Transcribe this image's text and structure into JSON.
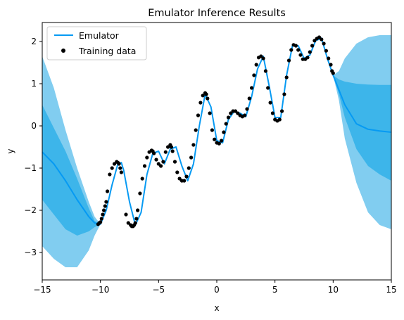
{
  "chart_data": {
    "type": "line",
    "title": "Emulator Inference Results",
    "xlabel": "x",
    "ylabel": "y",
    "xlim": [
      -15,
      15
    ],
    "ylim": [
      -3.65,
      2.45
    ],
    "xticks": [
      -15,
      -10,
      -5,
      0,
      5,
      10,
      15
    ],
    "yticks": [
      -3,
      -2,
      -1,
      0,
      1,
      2
    ],
    "grid": false,
    "legend_position": "top-left",
    "colors": {
      "line": "#069AF3",
      "band_inner": "#3DB5EA",
      "band_outer": "#81CDF0",
      "points": "#000000"
    },
    "series": [
      {
        "name": "Emulator",
        "kind": "line",
        "x": [
          -15,
          -14,
          -13,
          -12,
          -11,
          -10.5,
          -10,
          -9.5,
          -9,
          -8.5,
          -8.2,
          -8,
          -7.5,
          -7,
          -6.5,
          -6,
          -5.5,
          -5,
          -4.5,
          -4,
          -3.5,
          -3,
          -2.5,
          -2,
          -1.5,
          -1,
          -0.5,
          0,
          0.5,
          1,
          1.5,
          2,
          2.5,
          3,
          3.5,
          4,
          4.5,
          5,
          5.5,
          6,
          6.5,
          7,
          7.5,
          8,
          8.5,
          9,
          9.5,
          10,
          10.5,
          11,
          12,
          13,
          14,
          15
        ],
        "y": [
          -0.62,
          -0.9,
          -1.3,
          -1.75,
          -2.15,
          -2.3,
          -2.33,
          -2.0,
          -1.4,
          -0.9,
          -0.87,
          -1.05,
          -1.8,
          -2.35,
          -2.05,
          -1.15,
          -0.65,
          -0.6,
          -0.9,
          -0.55,
          -0.5,
          -0.95,
          -1.3,
          -0.9,
          0.0,
          0.75,
          0.45,
          -0.35,
          -0.4,
          0.15,
          0.35,
          0.3,
          0.22,
          0.7,
          1.35,
          1.65,
          0.95,
          0.2,
          0.2,
          1.2,
          1.9,
          1.9,
          1.6,
          1.68,
          2.02,
          2.08,
          1.6,
          1.2,
          0.85,
          0.5,
          0.05,
          -0.08,
          -0.12,
          -0.15
        ]
      },
      {
        "name": "Training data",
        "kind": "scatter",
        "x": [
          -10.2,
          -10.1,
          -10,
          -9.9,
          -9.8,
          -9.7,
          -9.6,
          -9.5,
          -9.4,
          -9.2,
          -9,
          -8.8,
          -8.6,
          -8.5,
          -8.4,
          -8.3,
          -8.2,
          -7.8,
          -7.6,
          -7.4,
          -7.3,
          -7.2,
          -7.1,
          -7,
          -6.9,
          -6.8,
          -6.6,
          -6.4,
          -6.2,
          -6,
          -5.8,
          -5.6,
          -5.5,
          -5.4,
          -5.2,
          -5,
          -4.8,
          -4.6,
          -4.4,
          -4.2,
          -4,
          -3.9,
          -3.8,
          -3.6,
          -3.4,
          -3.2,
          -3,
          -2.8,
          -2.6,
          -2.4,
          -2.2,
          -2,
          -1.8,
          -1.6,
          -1.4,
          -1.2,
          -1,
          -0.9,
          -0.8,
          -0.6,
          -0.4,
          -0.2,
          0,
          0.2,
          0.4,
          0.6,
          0.8,
          1,
          1.2,
          1.4,
          1.6,
          1.8,
          2,
          2.2,
          2.4,
          2.6,
          2.8,
          3,
          3.2,
          3.4,
          3.6,
          3.8,
          4,
          4.2,
          4.4,
          4.6,
          4.8,
          5,
          5.2,
          5.4,
          5.6,
          5.8,
          6,
          6.2,
          6.4,
          6.6,
          6.8,
          7,
          7.2,
          7.4,
          7.6,
          7.8,
          8,
          8.2,
          8.4,
          8.6,
          8.8,
          9,
          9.2,
          9.4,
          9.6,
          9.8,
          9.9,
          10
        ],
        "y": [
          -2.33,
          -2.3,
          -2.28,
          -2.2,
          -2.1,
          -2.0,
          -1.9,
          -1.8,
          -1.55,
          -1.15,
          -1.0,
          -0.9,
          -0.85,
          -0.87,
          -0.9,
          -1.0,
          -1.1,
          -2.1,
          -2.3,
          -2.35,
          -2.38,
          -2.38,
          -2.35,
          -2.3,
          -2.2,
          -2.0,
          -1.6,
          -1.25,
          -0.95,
          -0.75,
          -0.62,
          -0.58,
          -0.6,
          -0.65,
          -0.8,
          -0.9,
          -0.95,
          -0.85,
          -0.62,
          -0.5,
          -0.45,
          -0.5,
          -0.6,
          -0.85,
          -1.1,
          -1.25,
          -1.3,
          -1.3,
          -1.2,
          -1.0,
          -0.75,
          -0.45,
          -0.1,
          0.25,
          0.55,
          0.72,
          0.78,
          0.75,
          0.65,
          0.3,
          -0.1,
          -0.32,
          -0.4,
          -0.42,
          -0.35,
          -0.15,
          0.05,
          0.2,
          0.3,
          0.35,
          0.35,
          0.3,
          0.25,
          0.22,
          0.25,
          0.4,
          0.65,
          0.9,
          1.2,
          1.45,
          1.62,
          1.65,
          1.6,
          1.3,
          0.9,
          0.55,
          0.3,
          0.15,
          0.12,
          0.15,
          0.35,
          0.75,
          1.15,
          1.55,
          1.8,
          1.92,
          1.9,
          1.8,
          1.68,
          1.58,
          1.58,
          1.62,
          1.75,
          1.9,
          2.02,
          2.07,
          2.1,
          2.05,
          1.95,
          1.78,
          1.6,
          1.45,
          1.3,
          1.25
        ]
      }
    ],
    "bands": {
      "x": [
        -15,
        -14,
        -13,
        -12,
        -11,
        -10.5,
        -10
      ],
      "outer_upper": [
        1.65,
        0.9,
        -0.1,
        -1.0,
        -1.8,
        -2.15,
        -2.33
      ],
      "outer_lower": [
        -2.85,
        -3.15,
        -3.35,
        -3.35,
        -2.95,
        -2.6,
        -2.33
      ],
      "inner_upper": [
        0.5,
        -0.05,
        -0.6,
        -1.25,
        -1.95,
        -2.25,
        -2.33
      ],
      "inner_lower": [
        -1.75,
        -2.1,
        -2.45,
        -2.6,
        -2.5,
        -2.4,
        -2.33
      ],
      "x_right": [
        10,
        10.5,
        11,
        12,
        13,
        14,
        15
      ],
      "outer_upper_right": [
        1.2,
        1.3,
        1.6,
        1.95,
        2.1,
        2.15,
        2.15
      ],
      "outer_lower_right": [
        1.2,
        0.6,
        -0.3,
        -1.35,
        -2.05,
        -2.35,
        -2.45
      ],
      "inner_upper_right": [
        1.2,
        1.1,
        1.05,
        1.0,
        0.98,
        0.97,
        0.97
      ],
      "inner_lower_right": [
        1.2,
        0.75,
        0.2,
        -0.55,
        -0.95,
        -1.15,
        -1.3
      ]
    }
  }
}
